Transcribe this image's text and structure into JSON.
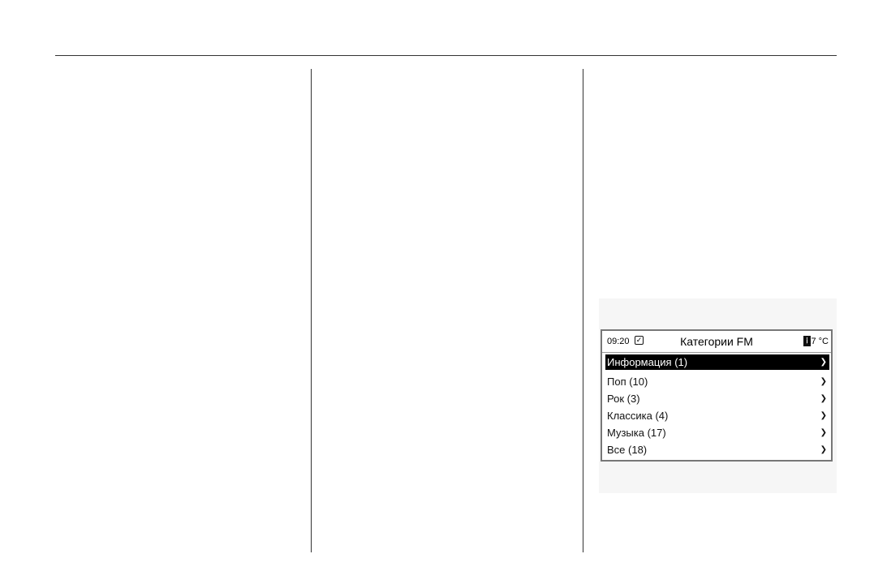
{
  "display": {
    "time": "09:20",
    "clock_icon": "clock-check-icon",
    "title": "Категории FM",
    "thermometer_icon": "thermometer-icon",
    "temperature": "17 °C",
    "items": [
      {
        "label": "Информация (1)",
        "selected": true
      },
      {
        "label": "Поп (10)",
        "selected": false
      },
      {
        "label": "Рок (3)",
        "selected": false
      },
      {
        "label": "Классика (4)",
        "selected": false
      },
      {
        "label": "Музыка (17)",
        "selected": false
      },
      {
        "label": "Все (18)",
        "selected": false
      }
    ],
    "arrow_glyph": "❯"
  }
}
